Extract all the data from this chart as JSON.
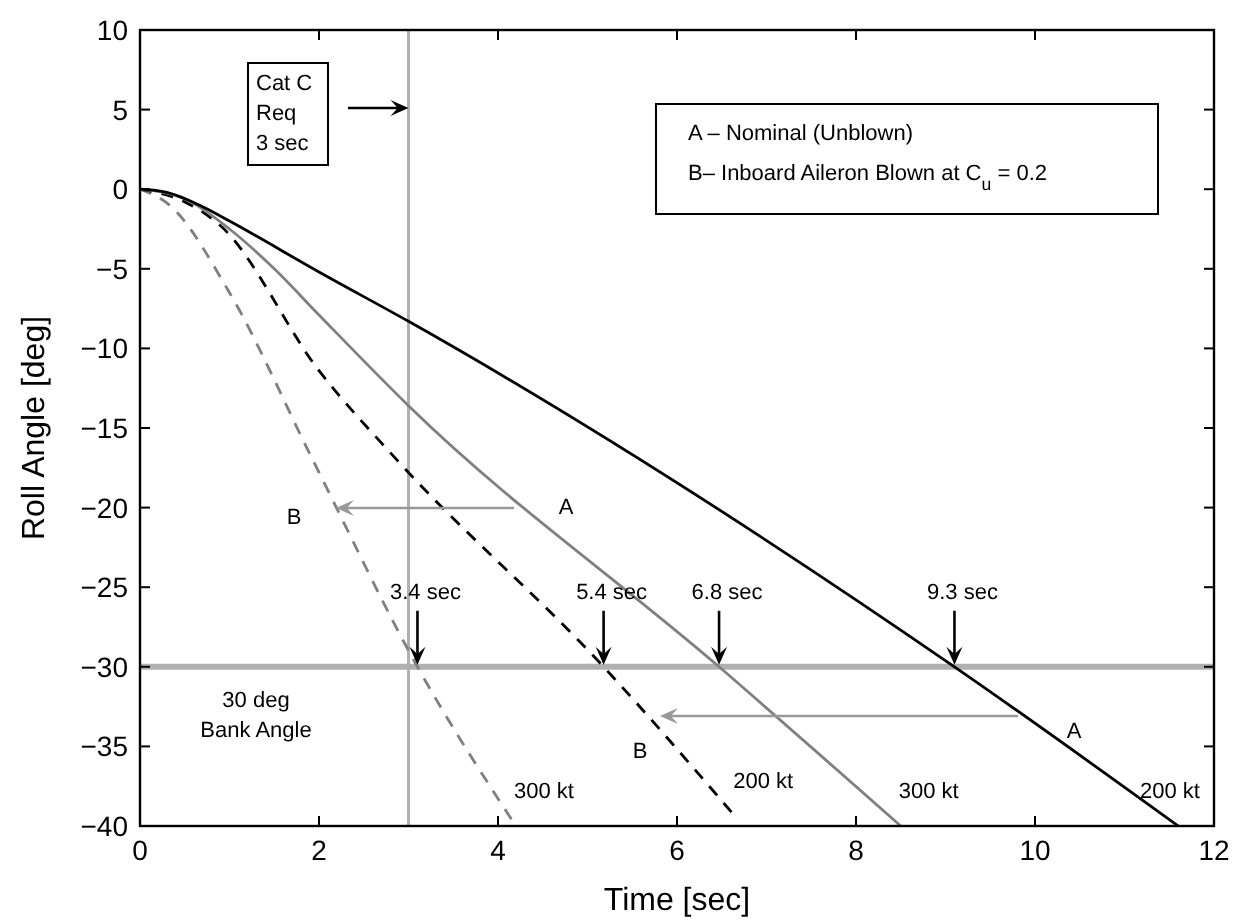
{
  "chart_data": {
    "type": "line",
    "xlabel": "Time [sec]",
    "ylabel": "Roll Angle [deg]",
    "xlim": [
      0,
      12
    ],
    "ylim": [
      -40,
      10
    ],
    "xticks": [
      0,
      2,
      4,
      6,
      8,
      10,
      12
    ],
    "yticks": [
      -40,
      -35,
      -30,
      -25,
      -20,
      -15,
      -10,
      -5,
      0,
      5,
      10
    ],
    "grid": false,
    "series": [
      {
        "name": "300 kt",
        "color": "#808080",
        "line_style": "dashed",
        "x": [
          0,
          0.33,
          1,
          1.93,
          3.1,
          4.2
        ],
        "values": [
          0,
          -1,
          -6.5,
          -17,
          -30,
          -40
        ]
      },
      {
        "name": "200 kt",
        "color": "#000000",
        "line_style": "dashed",
        "x": [
          0,
          0.5,
          0.9,
          2,
          2.87,
          5.18,
          6.65
        ],
        "values": [
          0,
          -0.8,
          -2.3,
          -11.4,
          -17,
          -30,
          -39.4
        ]
      },
      {
        "name": "300 kt",
        "color": "#808080",
        "line_style": "solid",
        "x": [
          0,
          0.5,
          1,
          1.5,
          2,
          3,
          6.47,
          8.5
        ],
        "values": [
          0,
          -0.6,
          -2.5,
          -5,
          -7.9,
          -13.6,
          -30,
          -40
        ]
      },
      {
        "name": "200 kt",
        "color": "#000000",
        "line_style": "solid",
        "x": [
          0,
          0.3,
          0.7,
          1,
          2,
          3,
          9.1,
          11.6
        ],
        "values": [
          0,
          -0.2,
          -1.1,
          -2,
          -5.2,
          -8.3,
          -30,
          -40
        ]
      }
    ],
    "ref_lines": [
      {
        "axis": "x",
        "value": 3,
        "color": "#b0b0b0"
      },
      {
        "axis": "y",
        "value": -30,
        "color": "#b0b0b0"
      }
    ],
    "annotations": [
      "Cat C\nReq\n3 sec",
      "A – Nominal (Unblown)",
      "B– Inboard Aileron Blown at C$_{u}$ = 0.2",
      {
        "text": "3.4 sec",
        "x": 3.1,
        "y": -30
      },
      {
        "text": "5.4 sec",
        "x": 5.18,
        "y": -30
      },
      {
        "text": "6.8 sec",
        "x": 6.47,
        "y": -30
      },
      {
        "text": "9.3 sec",
        "x": 9.1,
        "y": -30
      },
      "30 deg\nBank Angle",
      "B",
      "A",
      "A",
      "B"
    ]
  }
}
